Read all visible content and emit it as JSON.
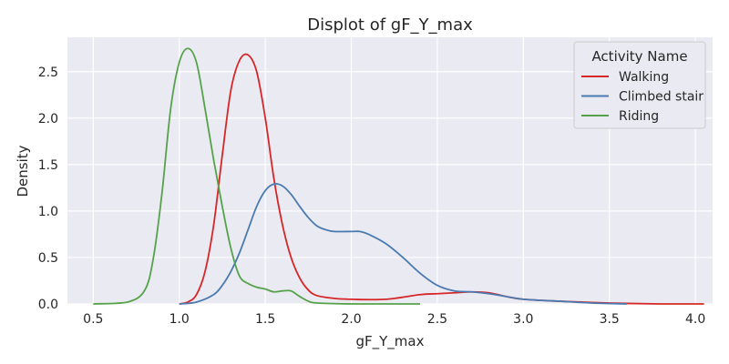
{
  "chart_data": {
    "type": "line",
    "title": "Displot of gF_Y_max",
    "xlabel": "gF_Y_max",
    "ylabel": "Density",
    "xlim": [
      0.35,
      4.1
    ],
    "ylim": [
      0,
      2.87
    ],
    "xticks": [
      "0.5",
      "1.0",
      "1.5",
      "2.0",
      "2.5",
      "3.0",
      "3.5",
      "4.0"
    ],
    "yticks": [
      "0.0",
      "0.5",
      "1.0",
      "1.5",
      "2.0",
      "2.5"
    ],
    "grid": true,
    "legend": {
      "title": "Activity Name",
      "position": "top-right"
    },
    "series": [
      {
        "name": "Walking",
        "color": "#d62728",
        "x": [
          1.0,
          1.05,
          1.1,
          1.15,
          1.2,
          1.25,
          1.3,
          1.35,
          1.4,
          1.45,
          1.5,
          1.55,
          1.6,
          1.65,
          1.7,
          1.75,
          1.8,
          1.9,
          2.0,
          2.2,
          2.4,
          2.5,
          2.6,
          2.7,
          2.8,
          2.9,
          3.0,
          3.2,
          3.5,
          3.8,
          4.05
        ],
        "y": [
          0.0,
          0.02,
          0.1,
          0.35,
          0.85,
          1.6,
          2.3,
          2.62,
          2.68,
          2.5,
          2.0,
          1.35,
          0.85,
          0.5,
          0.28,
          0.15,
          0.09,
          0.06,
          0.05,
          0.05,
          0.1,
          0.11,
          0.12,
          0.13,
          0.12,
          0.08,
          0.05,
          0.03,
          0.01,
          0.0,
          0.0
        ]
      },
      {
        "name": "Climbed stair",
        "color": "#4a7ab0",
        "x": [
          1.0,
          1.1,
          1.2,
          1.25,
          1.3,
          1.35,
          1.4,
          1.45,
          1.5,
          1.55,
          1.6,
          1.65,
          1.7,
          1.75,
          1.8,
          1.85,
          1.9,
          2.0,
          2.05,
          2.1,
          2.2,
          2.3,
          2.4,
          2.5,
          2.6,
          2.7,
          2.8,
          2.9,
          3.0,
          3.2,
          3.4,
          3.6
        ],
        "y": [
          0.0,
          0.02,
          0.1,
          0.2,
          0.35,
          0.55,
          0.8,
          1.05,
          1.22,
          1.29,
          1.27,
          1.18,
          1.05,
          0.93,
          0.84,
          0.8,
          0.78,
          0.78,
          0.78,
          0.75,
          0.65,
          0.5,
          0.33,
          0.2,
          0.14,
          0.13,
          0.11,
          0.08,
          0.05,
          0.03,
          0.01,
          0.0
        ]
      },
      {
        "name": "Riding",
        "color": "#55a24a",
        "x": [
          0.5,
          0.7,
          0.8,
          0.85,
          0.9,
          0.95,
          1.0,
          1.05,
          1.1,
          1.15,
          1.2,
          1.25,
          1.3,
          1.35,
          1.4,
          1.45,
          1.5,
          1.55,
          1.6,
          1.65,
          1.7,
          1.75,
          1.8,
          2.0,
          2.2,
          2.4
        ],
        "y": [
          0.0,
          0.02,
          0.15,
          0.5,
          1.2,
          2.1,
          2.6,
          2.75,
          2.6,
          2.1,
          1.55,
          1.05,
          0.6,
          0.3,
          0.22,
          0.18,
          0.16,
          0.13,
          0.14,
          0.14,
          0.08,
          0.03,
          0.01,
          0.0,
          0.0,
          0.0
        ]
      }
    ]
  }
}
